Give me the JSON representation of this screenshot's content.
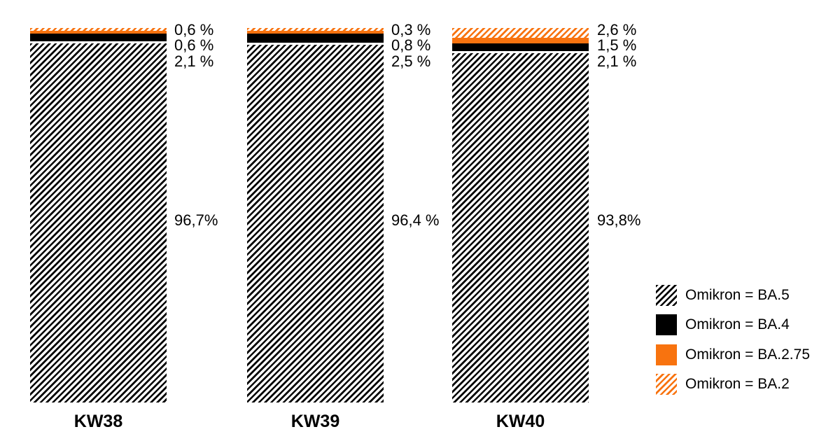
{
  "chart_data": {
    "type": "bar",
    "stacked": true,
    "title": "",
    "xlabel": "",
    "ylabel": "",
    "ylim": [
      0,
      100
    ],
    "grid": false,
    "legend_position": "right-bottom",
    "categories": [
      "KW38",
      "KW39",
      "KW40"
    ],
    "series": [
      {
        "name": "Omikron = BA.5",
        "style": "hatch-black",
        "values": [
          96.7,
          96.4,
          93.8
        ],
        "labels": [
          "96,7%",
          "96,4 %",
          "93,8%"
        ]
      },
      {
        "name": "Omikron = BA.4",
        "style": "solid-black",
        "values": [
          2.1,
          2.5,
          2.1
        ],
        "labels": [
          "2,1 %",
          "2,5 %",
          "2,1 %"
        ]
      },
      {
        "name": "Omikron = BA.2.75",
        "style": "solid-orange",
        "values": [
          0.6,
          0.8,
          1.5
        ],
        "labels": [
          "0,6 %",
          "0,8 %",
          "1,5 %"
        ]
      },
      {
        "name": "Omikron = BA.2",
        "style": "hatch-orange",
        "values": [
          0.6,
          0.3,
          2.6
        ],
        "labels": [
          "0,6 %",
          "0,3 %",
          "2,6 %"
        ]
      }
    ],
    "legend": [
      {
        "label": "Omikron = BA.5",
        "style": "hatch-black"
      },
      {
        "label": "Omikron = BA.4",
        "style": "solid-black"
      },
      {
        "label": "Omikron = BA.2.75",
        "style": "solid-orange"
      },
      {
        "label": "Omikron = BA.2",
        "style": "hatch-orange"
      }
    ],
    "colors": {
      "black": "#000000",
      "orange": "#F8730F",
      "background": "#FFFFFF",
      "text": "#000000"
    }
  }
}
